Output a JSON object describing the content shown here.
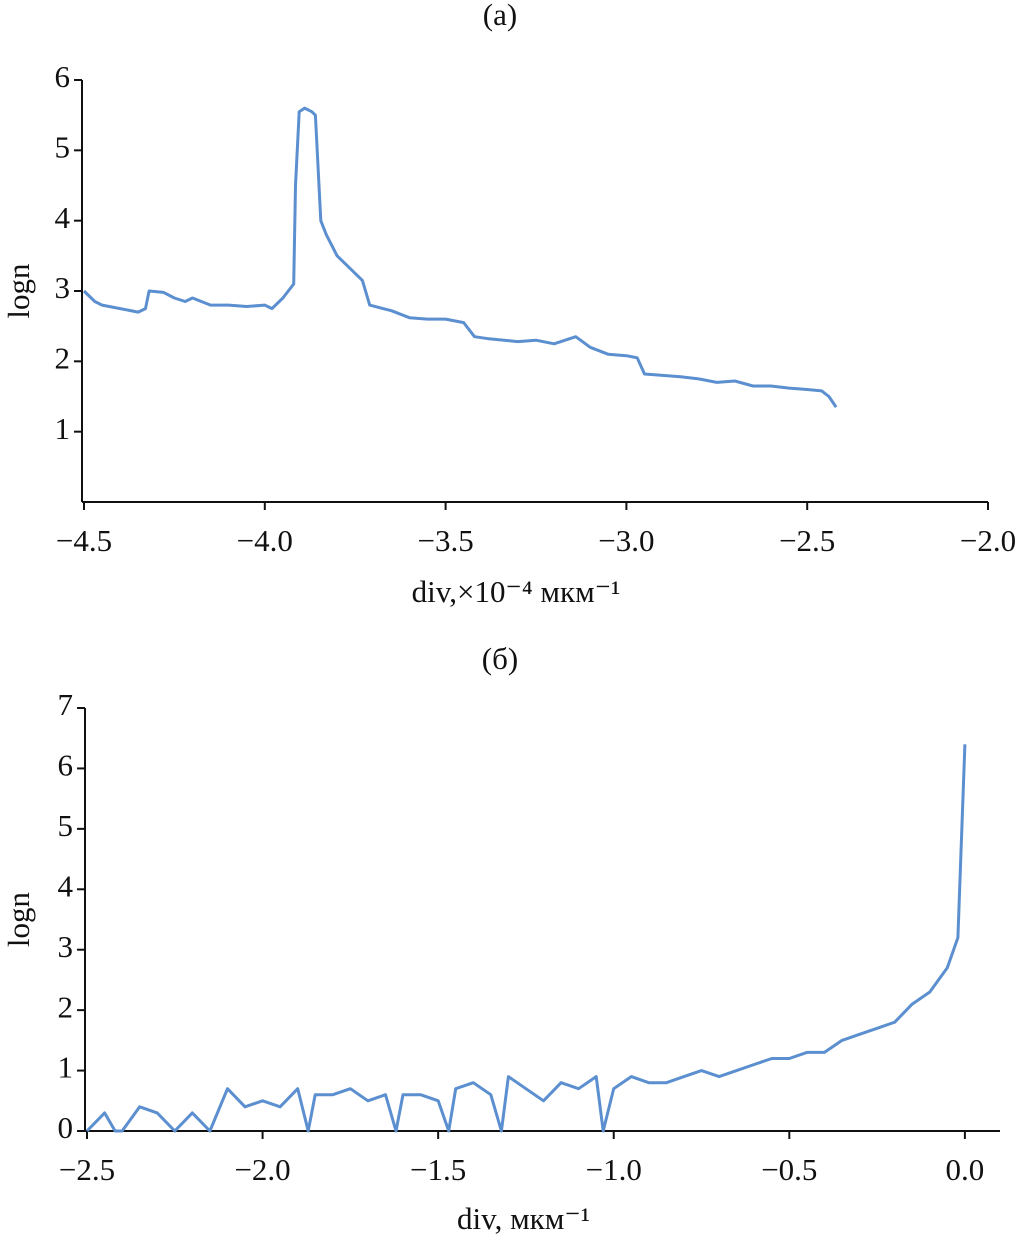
{
  "chart_data": [
    {
      "type": "line",
      "title": "(а)",
      "xlabel": "div,×10⁻⁴  мкм⁻¹",
      "ylabel": "logn",
      "color": "#5b8fcf",
      "xlim": [
        -4.5,
        -2.0
      ],
      "ylim": [
        0,
        6
      ],
      "xticks": [
        {
          "value": -4.5,
          "label": "−4.5"
        },
        {
          "value": -4.0,
          "label": "−4.0"
        },
        {
          "value": -3.5,
          "label": "−3.5"
        },
        {
          "value": -3.0,
          "label": "−3.0"
        },
        {
          "value": -2.5,
          "label": "−2.5"
        },
        {
          "value": -2.0,
          "label": "−2.0"
        }
      ],
      "yticks": [
        1,
        2,
        3,
        4,
        5,
        6
      ],
      "x": [
        -4.5,
        -4.47,
        -4.45,
        -4.4,
        -4.35,
        -4.33,
        -4.32,
        -4.28,
        -4.25,
        -4.22,
        -4.2,
        -4.15,
        -4.1,
        -4.05,
        -4.0,
        -3.98,
        -3.95,
        -3.92,
        -3.915,
        -3.905,
        -3.89,
        -3.87,
        -3.86,
        -3.845,
        -3.83,
        -3.8,
        -3.75,
        -3.73,
        -3.71,
        -3.65,
        -3.6,
        -3.55,
        -3.5,
        -3.45,
        -3.42,
        -3.38,
        -3.3,
        -3.25,
        -3.2,
        -3.14,
        -3.1,
        -3.05,
        -3.0,
        -2.97,
        -2.95,
        -2.9,
        -2.85,
        -2.8,
        -2.75,
        -2.7,
        -2.65,
        -2.6,
        -2.55,
        -2.5,
        -2.46,
        -2.44,
        -2.42
      ],
      "values": [
        3.0,
        2.85,
        2.8,
        2.75,
        2.7,
        2.75,
        3.0,
        2.98,
        2.9,
        2.85,
        2.9,
        2.8,
        2.8,
        2.78,
        2.8,
        2.75,
        2.9,
        3.1,
        4.5,
        5.55,
        5.6,
        5.55,
        5.5,
        4.0,
        3.8,
        3.5,
        3.25,
        3.15,
        2.8,
        2.72,
        2.62,
        2.6,
        2.6,
        2.55,
        2.35,
        2.32,
        2.28,
        2.3,
        2.25,
        2.35,
        2.2,
        2.1,
        2.08,
        2.05,
        1.82,
        1.8,
        1.78,
        1.75,
        1.7,
        1.72,
        1.65,
        1.65,
        1.62,
        1.6,
        1.58,
        1.5,
        1.35
      ]
    },
    {
      "type": "line",
      "title": "(б)",
      "xlabel": "div, мкм⁻¹",
      "ylabel": "logn",
      "color": "#5b8fcf",
      "xlim": [
        -2.5,
        0.1
      ],
      "ylim": [
        0,
        7
      ],
      "xticks": [
        {
          "value": -2.5,
          "label": "−2.5"
        },
        {
          "value": -2.0,
          "label": "−2.0"
        },
        {
          "value": -1.5,
          "label": "−1.5"
        },
        {
          "value": -1.0,
          "label": "−1.0"
        },
        {
          "value": -0.5,
          "label": "−0.5"
        },
        {
          "value": 0,
          "label": "0.0"
        }
      ],
      "yticks": [
        0,
        1,
        2,
        3,
        4,
        5,
        6,
        7
      ],
      "x": [
        -2.5,
        -2.45,
        -2.42,
        -2.4,
        -2.35,
        -2.3,
        -2.25,
        -2.2,
        -2.15,
        -2.1,
        -2.05,
        -2.0,
        -1.95,
        -1.9,
        -1.87,
        -1.85,
        -1.8,
        -1.75,
        -1.7,
        -1.65,
        -1.62,
        -1.6,
        -1.55,
        -1.5,
        -1.47,
        -1.45,
        -1.4,
        -1.35,
        -1.32,
        -1.3,
        -1.25,
        -1.2,
        -1.15,
        -1.1,
        -1.05,
        -1.03,
        -1.0,
        -0.95,
        -0.9,
        -0.85,
        -0.8,
        -0.75,
        -0.7,
        -0.65,
        -0.6,
        -0.55,
        -0.5,
        -0.45,
        -0.4,
        -0.35,
        -0.3,
        -0.25,
        -0.2,
        -0.15,
        -0.1,
        -0.05,
        -0.02,
        0
      ],
      "values": [
        0,
        0.3,
        0,
        0,
        0.4,
        0.3,
        0,
        0.3,
        0,
        0.7,
        0.4,
        0.5,
        0.4,
        0.7,
        0,
        0.6,
        0.6,
        0.7,
        0.5,
        0.6,
        0,
        0.6,
        0.6,
        0.5,
        0,
        0.7,
        0.8,
        0.6,
        0,
        0.9,
        0.7,
        0.5,
        0.8,
        0.7,
        0.9,
        0,
        0.7,
        0.9,
        0.8,
        0.8,
        0.9,
        1.0,
        0.9,
        1.0,
        1.1,
        1.2,
        1.2,
        1.3,
        1.3,
        1.5,
        1.6,
        1.7,
        1.8,
        2.1,
        2.3,
        2.7,
        3.2,
        6.4
      ]
    }
  ]
}
